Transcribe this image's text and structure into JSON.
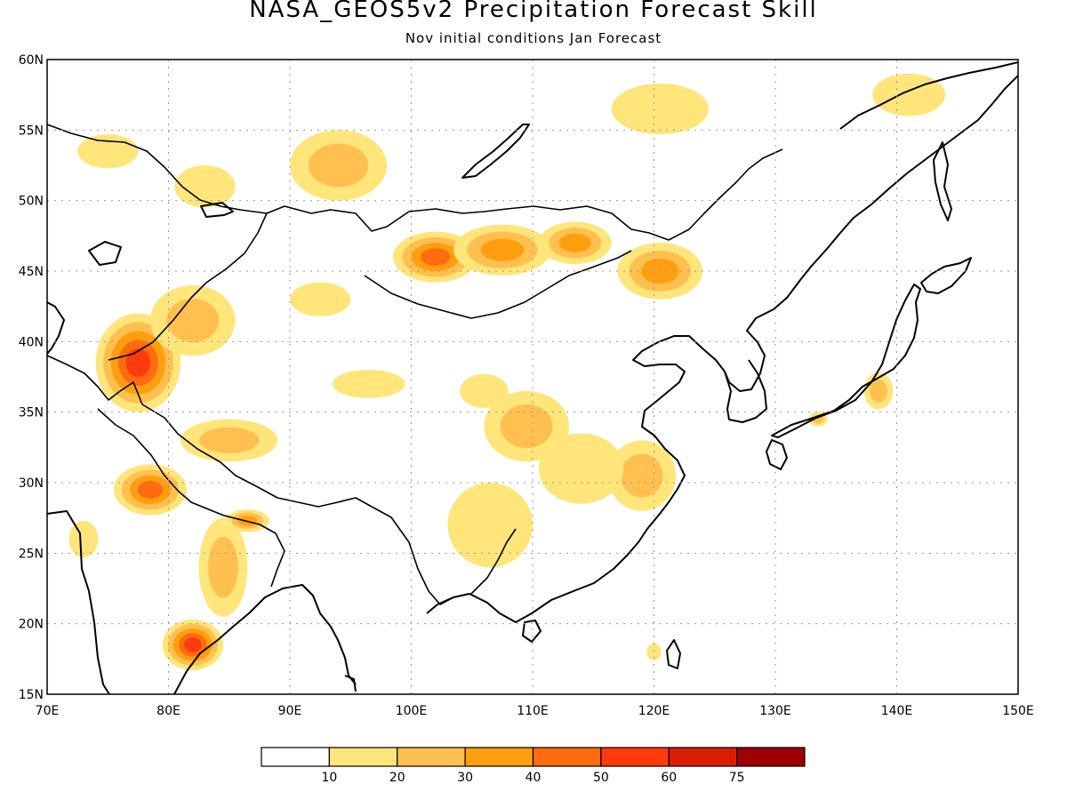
{
  "title": "NASA_GEOS5v2 Precipitation Forecast Skill",
  "subtitle": "Nov initial conditions  Jan Forecast",
  "map": {
    "lon_range": [
      70,
      150
    ],
    "lat_range": [
      15,
      60
    ],
    "lon_ticks": [
      {
        "value": 70,
        "label": "70E"
      },
      {
        "value": 80,
        "label": "80E"
      },
      {
        "value": 90,
        "label": "90E"
      },
      {
        "value": 100,
        "label": "100E"
      },
      {
        "value": 110,
        "label": "110E"
      },
      {
        "value": 120,
        "label": "120E"
      },
      {
        "value": 130,
        "label": "130E"
      },
      {
        "value": 140,
        "label": "140E"
      },
      {
        "value": 150,
        "label": "150E"
      }
    ],
    "lat_ticks": [
      {
        "value": 15,
        "label": "15N"
      },
      {
        "value": 20,
        "label": "20N"
      },
      {
        "value": 25,
        "label": "25N"
      },
      {
        "value": 30,
        "label": "30N"
      },
      {
        "value": 35,
        "label": "35N"
      },
      {
        "value": 40,
        "label": "40N"
      },
      {
        "value": 45,
        "label": "45N"
      },
      {
        "value": 50,
        "label": "50N"
      },
      {
        "value": 55,
        "label": "55N"
      },
      {
        "value": 60,
        "label": "60N"
      }
    ],
    "grid": "dotted",
    "skill_regions": [
      {
        "lon": 77.5,
        "lat": 38.5,
        "rx": 3.5,
        "ry": 3.5,
        "level": 5
      },
      {
        "lon": 78.5,
        "lat": 29.5,
        "rx": 3.0,
        "ry": 1.8,
        "level": 4
      },
      {
        "lon": 82.0,
        "lat": 18.5,
        "rx": 2.5,
        "ry": 1.8,
        "level": 5
      },
      {
        "lon": 84.5,
        "lat": 24.0,
        "rx": 2.0,
        "ry": 3.5,
        "level": 2
      },
      {
        "lon": 82.0,
        "lat": 41.5,
        "rx": 3.5,
        "ry": 2.5,
        "level": 2
      },
      {
        "lon": 85.0,
        "lat": 33.0,
        "rx": 4.0,
        "ry": 1.5,
        "level": 2
      },
      {
        "lon": 86.5,
        "lat": 27.3,
        "rx": 1.8,
        "ry": 0.8,
        "level": 3
      },
      {
        "lon": 94.0,
        "lat": 52.5,
        "rx": 4.0,
        "ry": 2.5,
        "level": 2
      },
      {
        "lon": 102.0,
        "lat": 46.0,
        "rx": 3.5,
        "ry": 1.8,
        "level": 4
      },
      {
        "lon": 107.5,
        "lat": 46.5,
        "rx": 4.0,
        "ry": 1.8,
        "level": 3
      },
      {
        "lon": 113.5,
        "lat": 47.0,
        "rx": 3.0,
        "ry": 1.5,
        "level": 3
      },
      {
        "lon": 120.5,
        "lat": 45.0,
        "rx": 3.5,
        "ry": 2.0,
        "level": 3
      },
      {
        "lon": 109.5,
        "lat": 34.0,
        "rx": 3.5,
        "ry": 2.5,
        "level": 2
      },
      {
        "lon": 96.5,
        "lat": 37.0,
        "rx": 3.0,
        "ry": 1.0,
        "level": 1
      },
      {
        "lon": 92.5,
        "lat": 43.0,
        "rx": 2.5,
        "ry": 1.2,
        "level": 1
      },
      {
        "lon": 106.0,
        "lat": 36.5,
        "rx": 2.0,
        "ry": 1.2,
        "level": 1
      },
      {
        "lon": 119.0,
        "lat": 30.5,
        "rx": 2.8,
        "ry": 2.5,
        "level": 2
      },
      {
        "lon": 138.5,
        "lat": 36.5,
        "rx": 1.2,
        "ry": 1.3,
        "level": 2
      },
      {
        "lon": 114.0,
        "lat": 31.0,
        "rx": 3.5,
        "ry": 2.5,
        "level": 1
      },
      {
        "lon": 106.5,
        "lat": 27.0,
        "rx": 3.5,
        "ry": 3.0,
        "level": 1
      },
      {
        "lon": 120.5,
        "lat": 56.5,
        "rx": 4.0,
        "ry": 1.8,
        "level": 1
      },
      {
        "lon": 141.0,
        "lat": 57.5,
        "rx": 3.0,
        "ry": 1.5,
        "level": 1
      },
      {
        "lon": 75.0,
        "lat": 53.5,
        "rx": 2.5,
        "ry": 1.2,
        "level": 1
      },
      {
        "lon": 83.0,
        "lat": 51.0,
        "rx": 2.5,
        "ry": 1.5,
        "level": 1
      },
      {
        "lon": 73.0,
        "lat": 26.0,
        "rx": 1.2,
        "ry": 1.3,
        "level": 1
      },
      {
        "lon": 120.0,
        "lat": 18.0,
        "rx": 0.6,
        "ry": 0.6,
        "level": 1
      },
      {
        "lon": 133.5,
        "lat": 34.5,
        "rx": 0.8,
        "ry": 0.5,
        "level": 2
      }
    ]
  },
  "legend": {
    "colors": [
      "#ffffff",
      "#ffe57a",
      "#ffc04f",
      "#ff9f10",
      "#ff6b0f",
      "#ff3a0c",
      "#dc1d06",
      "#9e0000"
    ],
    "labels": [
      "10",
      "20",
      "30",
      "40",
      "50",
      "60",
      "75"
    ]
  },
  "colors": {
    "coastline": "#000000",
    "grid": "#999999",
    "background": "#ffffff"
  }
}
